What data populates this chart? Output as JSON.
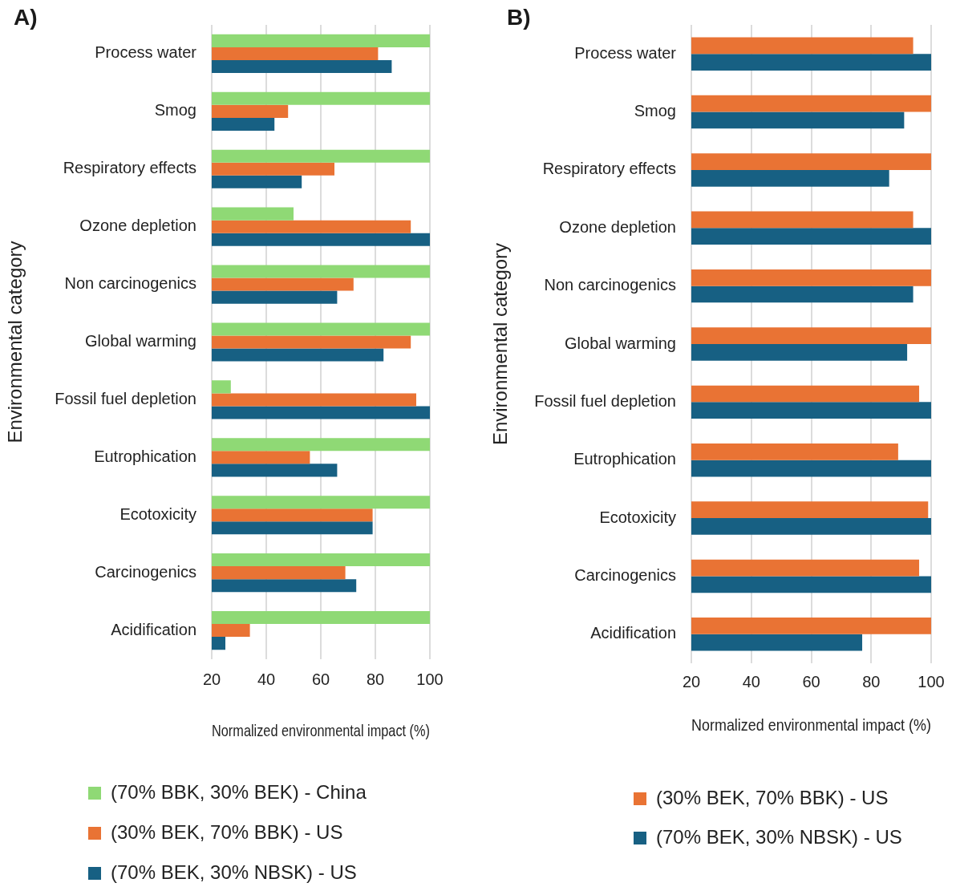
{
  "chart_data": [
    {
      "type": "bar",
      "orientation": "horizontal",
      "title": "A)",
      "xlabel": "Normalized environmental impact (%)",
      "ylabel": "Environmental category",
      "categories": [
        "Process water",
        "Smog",
        "Respiratory effects",
        "Ozone depletion",
        "Non carcinogenics",
        "Global warming",
        "Fossil fuel depletion",
        "Eutrophication",
        "Ecotoxicity",
        "Carcinogenics",
        "Acidification"
      ],
      "series": [
        {
          "name": "(70% BBK, 30% BEK) - China",
          "color": "#8fd975",
          "values": [
            100,
            100,
            100,
            50,
            100,
            100,
            27,
            100,
            100,
            100,
            100
          ]
        },
        {
          "name": "(30% BEK, 70% BBK) - US",
          "color": "#e97334",
          "values": [
            81,
            48,
            65,
            93,
            72,
            93,
            95,
            56,
            79,
            69,
            34
          ]
        },
        {
          "name": "(70% BEK, 30% NBSK) - US",
          "color": "#176083",
          "values": [
            86,
            43,
            53,
            100,
            66,
            83,
            100,
            66,
            79,
            73,
            25
          ]
        }
      ],
      "xlim": [
        20,
        100
      ],
      "xticks": [
        20,
        40,
        60,
        80,
        100
      ],
      "grid": "x",
      "legend": "bottom"
    },
    {
      "type": "bar",
      "orientation": "horizontal",
      "title": "B)",
      "xlabel": "Normalized environmental impact (%)",
      "ylabel": "Environmental category",
      "categories": [
        "Process water",
        "Smog",
        "Respiratory effects",
        "Ozone depletion",
        "Non carcinogenics",
        "Global warming",
        "Fossil fuel depletion",
        "Eutrophication",
        "Ecotoxicity",
        "Carcinogenics",
        "Acidification"
      ],
      "series": [
        {
          "name": "(30% BEK, 70% BBK) - US",
          "color": "#e97334",
          "values": [
            94,
            100,
            100,
            94,
            100,
            100,
            96,
            89,
            99,
            96,
            100
          ]
        },
        {
          "name": "(70% BEK, 30% NBSK) - US",
          "color": "#176083",
          "values": [
            100,
            91,
            86,
            100,
            94,
            92,
            100,
            100,
            100,
            100,
            77
          ]
        }
      ],
      "xlim": [
        20,
        100
      ],
      "xticks": [
        20,
        40,
        60,
        80,
        100
      ],
      "grid": "x",
      "legend": "bottom"
    }
  ]
}
